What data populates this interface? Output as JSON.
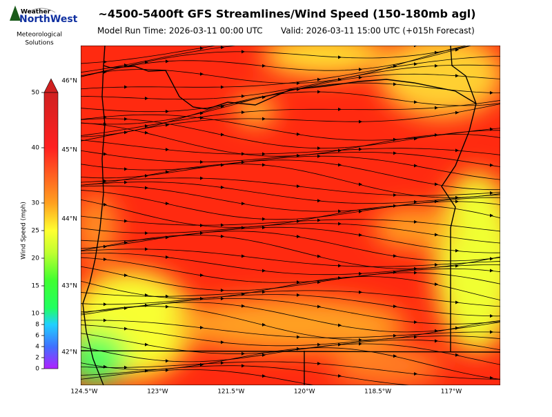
{
  "header": {
    "title": "~4500-5400ft GFS Streamlines/Wind Speed (150-180mb agl)",
    "model_run": "Model Run Time: 2026-03-11 00:00 UTC",
    "valid": "Valid: 2026-03-11 15:00 UTC  (+015h Forecast)"
  },
  "logo": {
    "brand_top": "Weather",
    "brand": "NorthWest",
    "line1": "Meteorological",
    "line2": "Solutions"
  },
  "colorbar": {
    "label": "Wind Speed (mph)",
    "lim": [
      0,
      50
    ],
    "ticks": [
      0,
      2,
      4,
      6,
      8,
      10,
      15,
      20,
      25,
      30,
      40,
      50
    ]
  },
  "map": {
    "lat_labels": [
      "46°N",
      "45°N",
      "44°N",
      "43°N",
      "42°N"
    ],
    "lon_labels": [
      "124.5°W",
      "123°W",
      "121.5°W",
      "120°W",
      "118.5°W",
      "117°W"
    ]
  }
}
